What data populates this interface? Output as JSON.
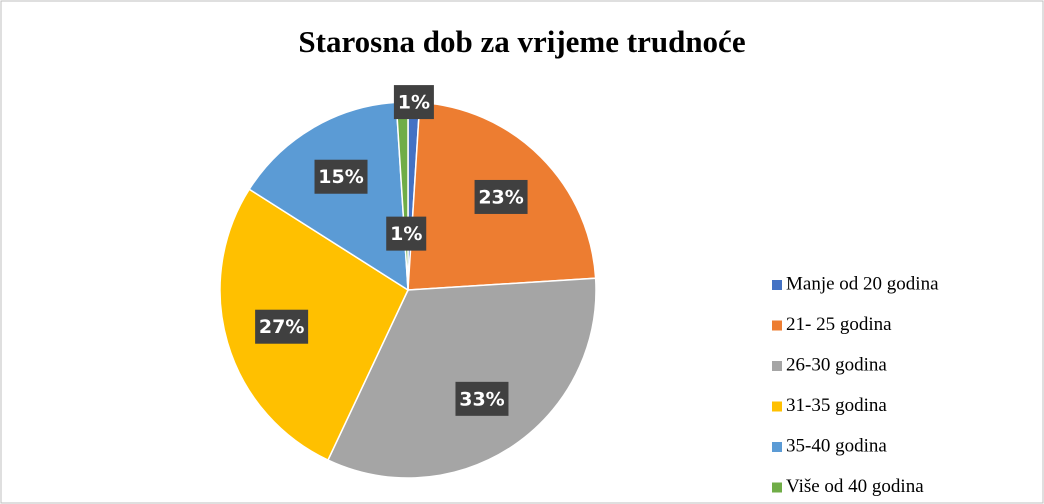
{
  "chart_data": {
    "type": "pie",
    "title": "Starosna dob za vrijeme trudnoće",
    "categories": [
      "Manje od 20 godina",
      "21- 25 godina",
      "26-30 godina",
      "31-35 godina",
      "35-40 godina",
      "Više od 40 godina"
    ],
    "values": [
      1,
      23,
      33,
      27,
      15,
      1
    ],
    "value_labels": [
      "1%",
      "23%",
      "33%",
      "27%",
      "15%",
      "1%"
    ],
    "colors": [
      "#4472c4",
      "#ed7d31",
      "#a5a5a5",
      "#ffc000",
      "#5b9bd5",
      "#70ad47"
    ],
    "legend": "right"
  }
}
